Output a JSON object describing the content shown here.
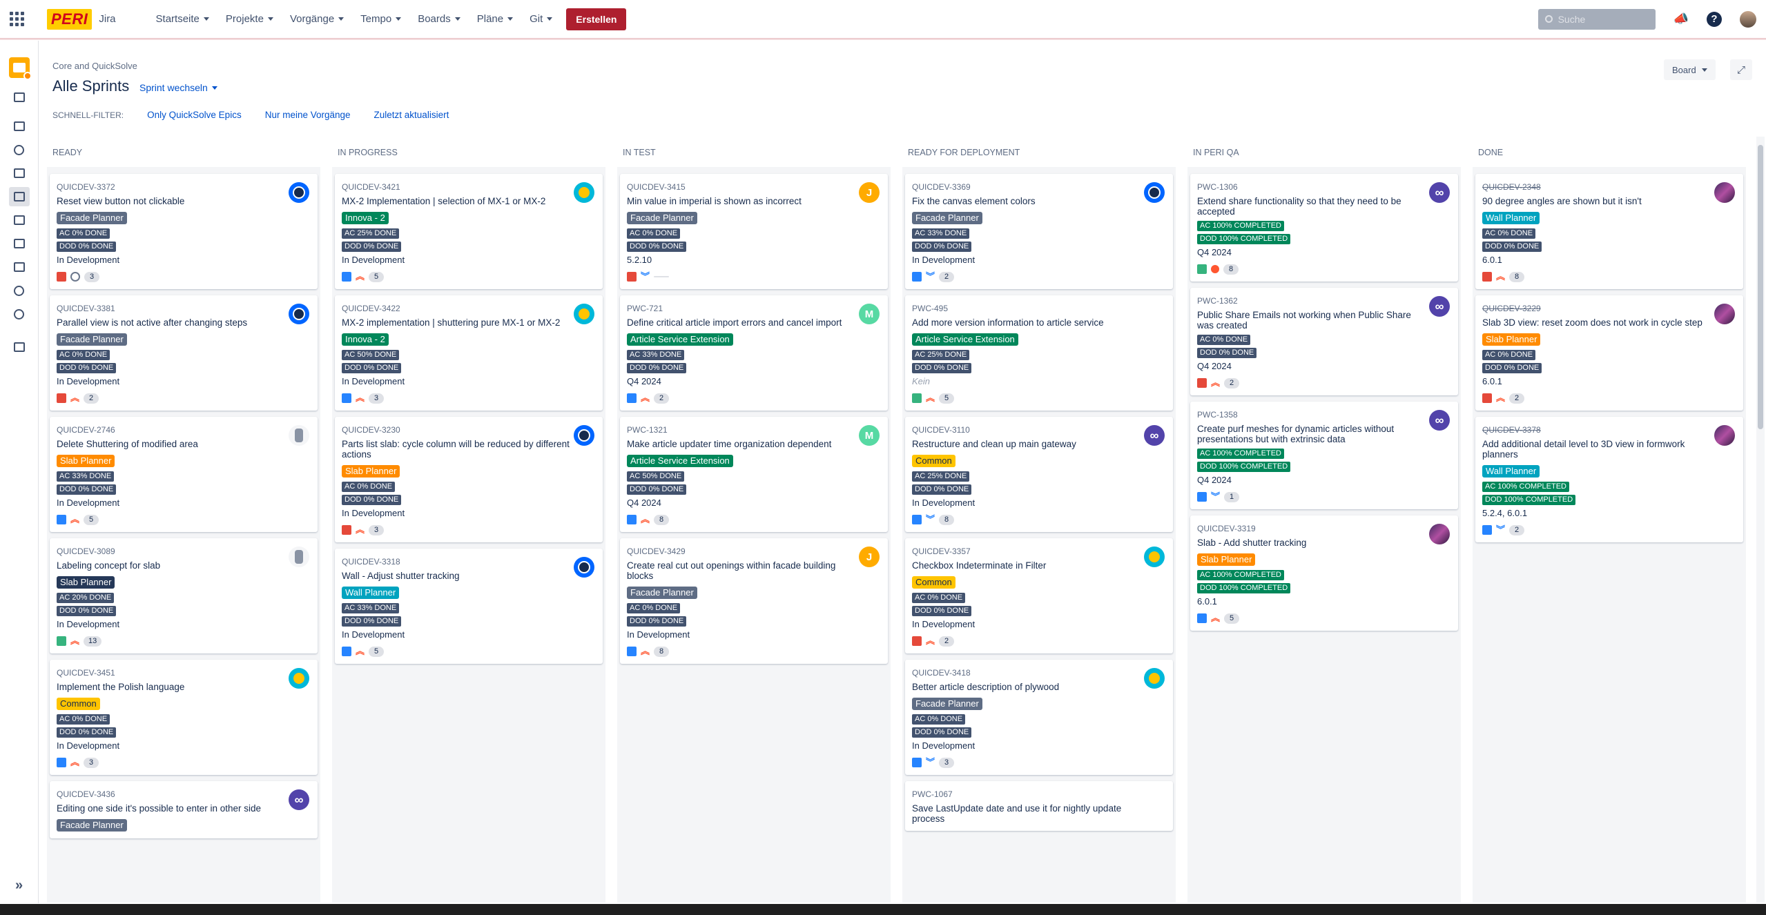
{
  "topnav": {
    "brand": "PERI",
    "app_name": "Jira",
    "menu": [
      {
        "label": "Startseite"
      },
      {
        "label": "Projekte"
      },
      {
        "label": "Vorgänge"
      },
      {
        "label": "Tempo"
      },
      {
        "label": "Boards"
      },
      {
        "label": "Pläne"
      },
      {
        "label": "Git"
      }
    ],
    "create_label": "Erstellen",
    "search_placeholder": "Suche"
  },
  "header": {
    "breadcrumb": "Core and QuickSolve",
    "title": "Alle Sprints",
    "sprint_switch": "Sprint wechseln",
    "board_button": "Board"
  },
  "filters": {
    "label": "SCHNELL-FILTER:",
    "items": [
      "Only QuickSolve Epics",
      "Nur meine Vorgänge",
      "Zuletzt aktualisiert"
    ]
  },
  "colors": {
    "Facade Planner": "#5e6c84",
    "Innova - 2": "#00875a",
    "Slab Planner": "#ff8b00",
    "Common": "#ffc400",
    "Wall Planner": "#00a3bf",
    "Article Service Extension": "#00875a"
  },
  "columns": [
    {
      "name": "READY",
      "cards": [
        {
          "key": "QUICDEV-3372",
          "summary": "Reset view button not clickable",
          "epic": "Facade Planner",
          "labels": [
            "AC 0% DONE",
            "DOD 0% DONE"
          ],
          "fix": "In Development",
          "type": "bug",
          "priority": "subtask",
          "est": "3",
          "avatar": "blue"
        },
        {
          "key": "QUICDEV-3381",
          "summary": "Parallel view is not active after changing steps",
          "epic": "Facade Planner",
          "labels": [
            "AC 0% DONE",
            "DOD 0% DONE"
          ],
          "fix": "In Development",
          "type": "bug",
          "priority": "high",
          "est": "2",
          "avatar": "blue"
        },
        {
          "key": "QUICDEV-2746",
          "summary": "Delete Shuttering of modified area",
          "epic": "Slab Planner",
          "labels": [
            "AC 33% DONE",
            "DOD 0% DONE"
          ],
          "fix": "In Development",
          "type": "task",
          "priority": "high",
          "est": "5",
          "avatar": "robot"
        },
        {
          "key": "QUICDEV-3089",
          "summary": "Labeling concept for slab",
          "epic": "Slab Planner",
          "epic_dark": true,
          "labels": [
            "AC 20% DONE",
            "DOD 0% DONE"
          ],
          "fix": "In Development",
          "type": "story",
          "priority": "high",
          "est": "13",
          "avatar": "robot"
        },
        {
          "key": "QUICDEV-3451",
          "summary": "Implement the Polish language",
          "epic": "Common",
          "labels": [
            "AC 0% DONE",
            "DOD 0% DONE"
          ],
          "fix": "In Development",
          "type": "task",
          "priority": "high",
          "est": "3",
          "avatar": "dog"
        },
        {
          "key": "QUICDEV-3436",
          "summary": "Editing one side it's possible to enter in other side",
          "epic": "Facade Planner",
          "labels": [],
          "fix": "",
          "type": "",
          "priority": "",
          "est": "",
          "avatar": "inf"
        }
      ]
    },
    {
      "name": "IN PROGRESS",
      "cards": [
        {
          "key": "QUICDEV-3421",
          "summary": "MX-2 Implementation | selection of MX-1 or MX-2",
          "epic": "Innova - 2",
          "labels": [
            "AC 25% DONE",
            "DOD 0% DONE"
          ],
          "fix": "In Development",
          "type": "task",
          "priority": "high",
          "est": "5",
          "avatar": "dog"
        },
        {
          "key": "QUICDEV-3422",
          "summary": "MX-2 implementation | shuttering pure MX-1 or MX-2",
          "epic": "Innova - 2",
          "labels": [
            "AC 50% DONE",
            "DOD 0% DONE"
          ],
          "fix": "In Development",
          "type": "task",
          "priority": "high",
          "est": "3",
          "avatar": "dog"
        },
        {
          "key": "QUICDEV-3230",
          "summary": "Parts list slab: cycle column will be reduced by different actions",
          "epic": "Slab Planner",
          "labels": [
            "AC 0% DONE",
            "DOD 0% DONE"
          ],
          "fix": "In Development",
          "type": "bug",
          "priority": "high",
          "est": "3",
          "avatar": "blue"
        },
        {
          "key": "QUICDEV-3318",
          "summary": "Wall - Adjust shutter tracking",
          "epic": "Wall Planner",
          "labels": [
            "AC 33% DONE",
            "DOD 0% DONE"
          ],
          "fix": "In Development",
          "type": "task",
          "priority": "high",
          "est": "5",
          "avatar": "blue"
        }
      ]
    },
    {
      "name": "IN TEST",
      "cards": [
        {
          "key": "QUICDEV-3415",
          "summary": "Min value in imperial is shown as incorrect",
          "epic": "Facade Planner",
          "labels": [
            "AC 0% DONE",
            "DOD 0% DONE"
          ],
          "fix": "5.2.10",
          "type": "bug",
          "priority": "low",
          "est": "",
          "avatar": "j",
          "avatar_text": "J"
        },
        {
          "key": "PWC-721",
          "summary": "Define critical article import errors and cancel import",
          "epic": "Article Service Extension",
          "labels": [
            "AC 33% DONE",
            "DOD 0% DONE"
          ],
          "fix": "Q4 2024",
          "type": "task",
          "priority": "high",
          "est": "2",
          "avatar": "m",
          "avatar_text": "M"
        },
        {
          "key": "PWC-1321",
          "summary": "Make article updater time organization dependent",
          "epic": "Article Service Extension",
          "labels": [
            "AC 50% DONE",
            "DOD 0% DONE"
          ],
          "fix": "Q4 2024",
          "type": "task",
          "priority": "high",
          "est": "8",
          "avatar": "m",
          "avatar_text": "M"
        },
        {
          "key": "QUICDEV-3429",
          "summary": "Create real cut out openings within facade building blocks",
          "epic": "Facade Planner",
          "labels": [
            "AC 0% DONE",
            "DOD 0% DONE"
          ],
          "fix": "In Development",
          "type": "task",
          "priority": "high",
          "est": "8",
          "avatar": "j",
          "avatar_text": "J"
        }
      ]
    },
    {
      "name": "READY FOR DEPLOYMENT",
      "cards": [
        {
          "key": "QUICDEV-3369",
          "summary": "Fix the canvas element colors",
          "epic": "Facade Planner",
          "labels": [
            "AC 33% DONE",
            "DOD 0% DONE"
          ],
          "fix": "In Development",
          "type": "task",
          "priority": "low",
          "est": "2",
          "avatar": "blue"
        },
        {
          "key": "PWC-495",
          "summary": "Add more version information to article service",
          "epic": "Article Service Extension",
          "labels": [
            "AC 25% DONE",
            "DOD 0% DONE"
          ],
          "fix": "Kein",
          "fix_muted": true,
          "type": "story",
          "priority": "high",
          "est": "5",
          "avatar": ""
        },
        {
          "key": "QUICDEV-3110",
          "summary": "Restructure and clean up main gateway",
          "epic": "Common",
          "labels": [
            "AC 25% DONE",
            "DOD 0% DONE"
          ],
          "fix": "In Development",
          "type": "task",
          "priority": "low",
          "est": "8",
          "avatar": "inf"
        },
        {
          "key": "QUICDEV-3357",
          "summary": "Checkbox Indeterminate in Filter",
          "epic": "Common",
          "labels": [
            "AC 0% DONE",
            "DOD 0% DONE"
          ],
          "fix": "In Development",
          "type": "bug",
          "priority": "high",
          "est": "2",
          "avatar": "dog"
        },
        {
          "key": "QUICDEV-3418",
          "summary": "Better article description of plywood",
          "epic": "Facade Planner",
          "labels": [
            "AC 0% DONE",
            "DOD 0% DONE"
          ],
          "fix": "In Development",
          "type": "task",
          "priority": "low",
          "est": "3",
          "avatar": "dog"
        },
        {
          "key": "PWC-1067",
          "summary": "Save LastUpdate date and use it for nightly update process",
          "epic": "",
          "labels": [],
          "fix": "",
          "type": "",
          "priority": "",
          "est": "",
          "avatar": ""
        }
      ]
    },
    {
      "name": "IN PERI QA",
      "cards": [
        {
          "key": "PWC-1306",
          "summary": "Extend share functionality so that they need to be accepted",
          "epic": "",
          "labels": [
            "AC 100% COMPLETED",
            "DOD 100% COMPLETED"
          ],
          "labels_green": true,
          "fix": "Q4 2024",
          "type": "story",
          "priority": "dot",
          "est": "8",
          "avatar": "inf"
        },
        {
          "key": "PWC-1362",
          "summary": "Public Share Emails not working when Public Share was created",
          "epic": "",
          "labels": [
            "AC 0% DONE",
            "DOD 0% DONE"
          ],
          "fix": "Q4 2024",
          "type": "bug",
          "priority": "high",
          "est": "2",
          "avatar": "inf"
        },
        {
          "key": "PWC-1358",
          "summary": "Create purf meshes for dynamic articles without presentations but with extrinsic data",
          "epic": "",
          "labels": [
            "AC 100% COMPLETED",
            "DOD 100% COMPLETED"
          ],
          "labels_green": true,
          "fix": "Q4 2024",
          "type": "task",
          "priority": "low",
          "est": "1",
          "avatar": "inf"
        },
        {
          "key": "QUICDEV-3319",
          "summary": "Slab - Add shutter tracking",
          "epic": "Slab Planner",
          "labels": [
            "AC 100% COMPLETED",
            "DOD 100% COMPLETED"
          ],
          "labels_green": true,
          "fix": "6.0.1",
          "type": "task",
          "priority": "high",
          "est": "5",
          "avatar": "img"
        }
      ]
    },
    {
      "name": "DONE",
      "cards": [
        {
          "key": "QUICDEV-2348",
          "key_done": true,
          "summary": "90 degree angles are shown but it isn't",
          "epic": "Wall Planner",
          "labels": [
            "AC 0% DONE",
            "DOD 0% DONE"
          ],
          "fix": "6.0.1",
          "type": "bug",
          "priority": "high",
          "est": "8",
          "avatar": "img"
        },
        {
          "key": "QUICDEV-3229",
          "key_done": true,
          "summary": "Slab 3D view: reset zoom does not work in cycle step",
          "epic": "Slab Planner",
          "labels": [
            "AC 0% DONE",
            "DOD 0% DONE"
          ],
          "fix": "6.0.1",
          "type": "bug",
          "priority": "high",
          "est": "2",
          "avatar": "img"
        },
        {
          "key": "QUICDEV-3378",
          "key_done": true,
          "summary": "Add additional detail level to 3D view in formwork planners",
          "epic": "Wall Planner",
          "labels": [
            "AC 100% COMPLETED",
            "DOD 100% COMPLETED"
          ],
          "labels_green": true,
          "fix": "5.2.4, 6.0.1",
          "type": "task",
          "priority": "low",
          "est": "2",
          "avatar": "img"
        }
      ]
    }
  ]
}
